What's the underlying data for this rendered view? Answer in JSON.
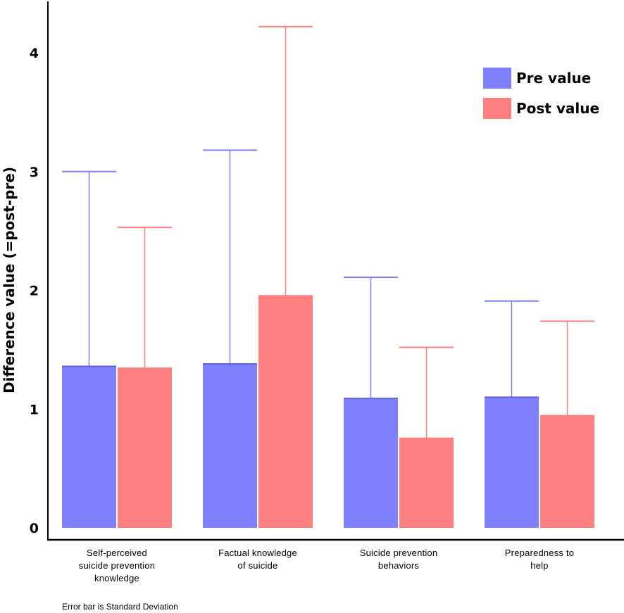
{
  "chart_data": {
    "type": "bar",
    "title": "",
    "xlabel": "",
    "ylabel": "Difference value (=post-pre)",
    "ylim": [
      0,
      4.3
    ],
    "yticks": [
      "0",
      "1",
      "2",
      "3",
      "4"
    ],
    "categories": [
      [
        "Self-perceived",
        "suicide prevention",
        "knowledge"
      ],
      [
        "Factual knowledge",
        "of suicide"
      ],
      [
        "Suicide prevention",
        "behaviors"
      ],
      [
        "Preparedness to",
        "help"
      ]
    ],
    "series": [
      {
        "name": "Pre value",
        "color": "#8080ff",
        "values": [
          1.36,
          1.38,
          1.09,
          1.1
        ],
        "error_upper": [
          3.0,
          3.18,
          2.11,
          1.91
        ]
      },
      {
        "name": "Post value",
        "color": "#ff8080",
        "values": [
          1.35,
          1.96,
          0.76,
          0.95
        ],
        "error_upper": [
          2.53,
          4.22,
          1.52,
          1.74
        ]
      }
    ],
    "legend_position": "top-right",
    "grid": false,
    "note": "Error bar is Standard Deviation"
  }
}
